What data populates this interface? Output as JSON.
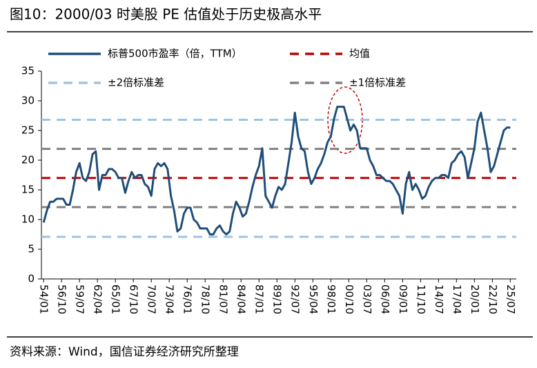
{
  "chart_data": {
    "type": "line",
    "title": "图10：2000/03 时美股 PE 估值处于历史极高水平",
    "source": "资料来源：Wind，国信证券经济研究所整理",
    "x": [
      "54/01",
      "54/07",
      "55/01",
      "55/07",
      "56/01",
      "56/07",
      "57/01",
      "57/07",
      "58/01",
      "58/07",
      "59/01",
      "59/07",
      "60/01",
      "60/07",
      "61/01",
      "61/07",
      "62/01",
      "62/07",
      "63/01",
      "63/07",
      "64/01",
      "64/07",
      "65/01",
      "65/07",
      "66/01",
      "66/07",
      "67/01",
      "67/07",
      "68/01",
      "68/07",
      "69/01",
      "69/07",
      "70/01",
      "70/07",
      "71/01",
      "71/07",
      "72/01",
      "72/07",
      "73/01",
      "73/07",
      "74/01",
      "74/07",
      "75/01",
      "75/07",
      "76/01",
      "76/07",
      "77/01",
      "77/07",
      "78/01",
      "78/07",
      "79/01",
      "79/07",
      "80/01",
      "80/07",
      "81/01",
      "81/07",
      "82/01",
      "82/07",
      "83/01",
      "83/07",
      "84/01",
      "84/07",
      "85/01",
      "85/07",
      "86/01",
      "86/07",
      "87/01",
      "87/07",
      "88/01",
      "88/07",
      "89/01",
      "89/07",
      "90/01",
      "90/07",
      "91/01",
      "91/07",
      "92/01",
      "92/07",
      "93/01",
      "93/07",
      "94/01",
      "94/07",
      "95/01",
      "95/07",
      "96/01",
      "96/07",
      "97/01",
      "97/07",
      "98/01",
      "98/07",
      "99/01",
      "99/07",
      "00/01",
      "00/07",
      "01/01",
      "01/07",
      "02/01",
      "02/07",
      "03/01",
      "03/07",
      "04/01",
      "04/07",
      "05/01",
      "05/07",
      "06/01",
      "06/07",
      "07/01",
      "07/07",
      "08/01",
      "08/07",
      "09/01",
      "09/07",
      "10/01",
      "10/07",
      "11/01",
      "11/07",
      "12/01",
      "12/07",
      "13/01",
      "13/07",
      "14/01",
      "14/07",
      "15/01",
      "15/07",
      "16/01",
      "16/07",
      "17/01",
      "17/07",
      "18/01",
      "18/07",
      "19/01",
      "19/07",
      "20/01",
      "20/07",
      "21/01",
      "21/07",
      "22/01",
      "22/07",
      "23/01",
      "23/07",
      "24/01",
      "24/07",
      "25/01",
      "25/07"
    ],
    "series": [
      {
        "name": "标普500市盈率（倍，TTM）",
        "color": "#1f4e79",
        "values": [
          9.5,
          11.5,
          13,
          13,
          13.5,
          13.5,
          13.5,
          12.5,
          12.5,
          15,
          18,
          19.5,
          17,
          16.5,
          18,
          21,
          21.5,
          15,
          17.5,
          17.5,
          18.5,
          18.5,
          18,
          17,
          17,
          14.5,
          16.5,
          18,
          17,
          17.5,
          17.5,
          16,
          15.5,
          14,
          18.5,
          19.5,
          19,
          19.5,
          18.5,
          14,
          11.5,
          8,
          8.5,
          11,
          12,
          12,
          10,
          9.5,
          8.5,
          8.5,
          8.5,
          7.5,
          7.5,
          8.5,
          9,
          8,
          7.5,
          8,
          11,
          13,
          12,
          10.5,
          11,
          13,
          15.5,
          17.5,
          19,
          22,
          14,
          13,
          12,
          14,
          15.5,
          15,
          16,
          19.5,
          23,
          28,
          24,
          22,
          21.5,
          18,
          16,
          17,
          18.5,
          19.5,
          21,
          23,
          24,
          27,
          29,
          29,
          29,
          27,
          25,
          26,
          25,
          22,
          22,
          22,
          20,
          19,
          17.5,
          17.5,
          17,
          16.5,
          16.5,
          16,
          15,
          14,
          11,
          16,
          18,
          15,
          16,
          15,
          13.5,
          14,
          15.5,
          16.5,
          17,
          17,
          17.5,
          17.5,
          17,
          19.5,
          20,
          21,
          21.5,
          20.5,
          17,
          19.5,
          22,
          26.5,
          28,
          25,
          22,
          18,
          19,
          21,
          23,
          25,
          25.5,
          25.5
        ]
      }
    ],
    "reference_lines": [
      {
        "name": "均值",
        "color": "#c00000",
        "values": [
          17
        ]
      },
      {
        "name": "±2倍标准差",
        "color": "#9dc3e6",
        "values": [
          7.1,
          26.8
        ]
      },
      {
        "name": "±1倍标准差",
        "color": "#808080",
        "values": [
          12.1,
          21.9
        ]
      }
    ],
    "xlim": [
      "53/09",
      "26/06"
    ],
    "xticks": [
      "54/01",
      "56/10",
      "59/07",
      "62/04",
      "65/01",
      "67/10",
      "70/07",
      "73/04",
      "76/01",
      "78/10",
      "81/07",
      "84/04",
      "87/01",
      "89/10",
      "92/07",
      "95/04",
      "98/01",
      "00/10",
      "03/07",
      "06/04",
      "09/01",
      "11/10",
      "14/07",
      "17/04",
      "20/01",
      "22/10",
      "25/07"
    ],
    "ylim": [
      0,
      35
    ],
    "yticks": [
      0,
      5,
      10,
      15,
      20,
      25,
      30,
      35
    ],
    "grid": false
  }
}
